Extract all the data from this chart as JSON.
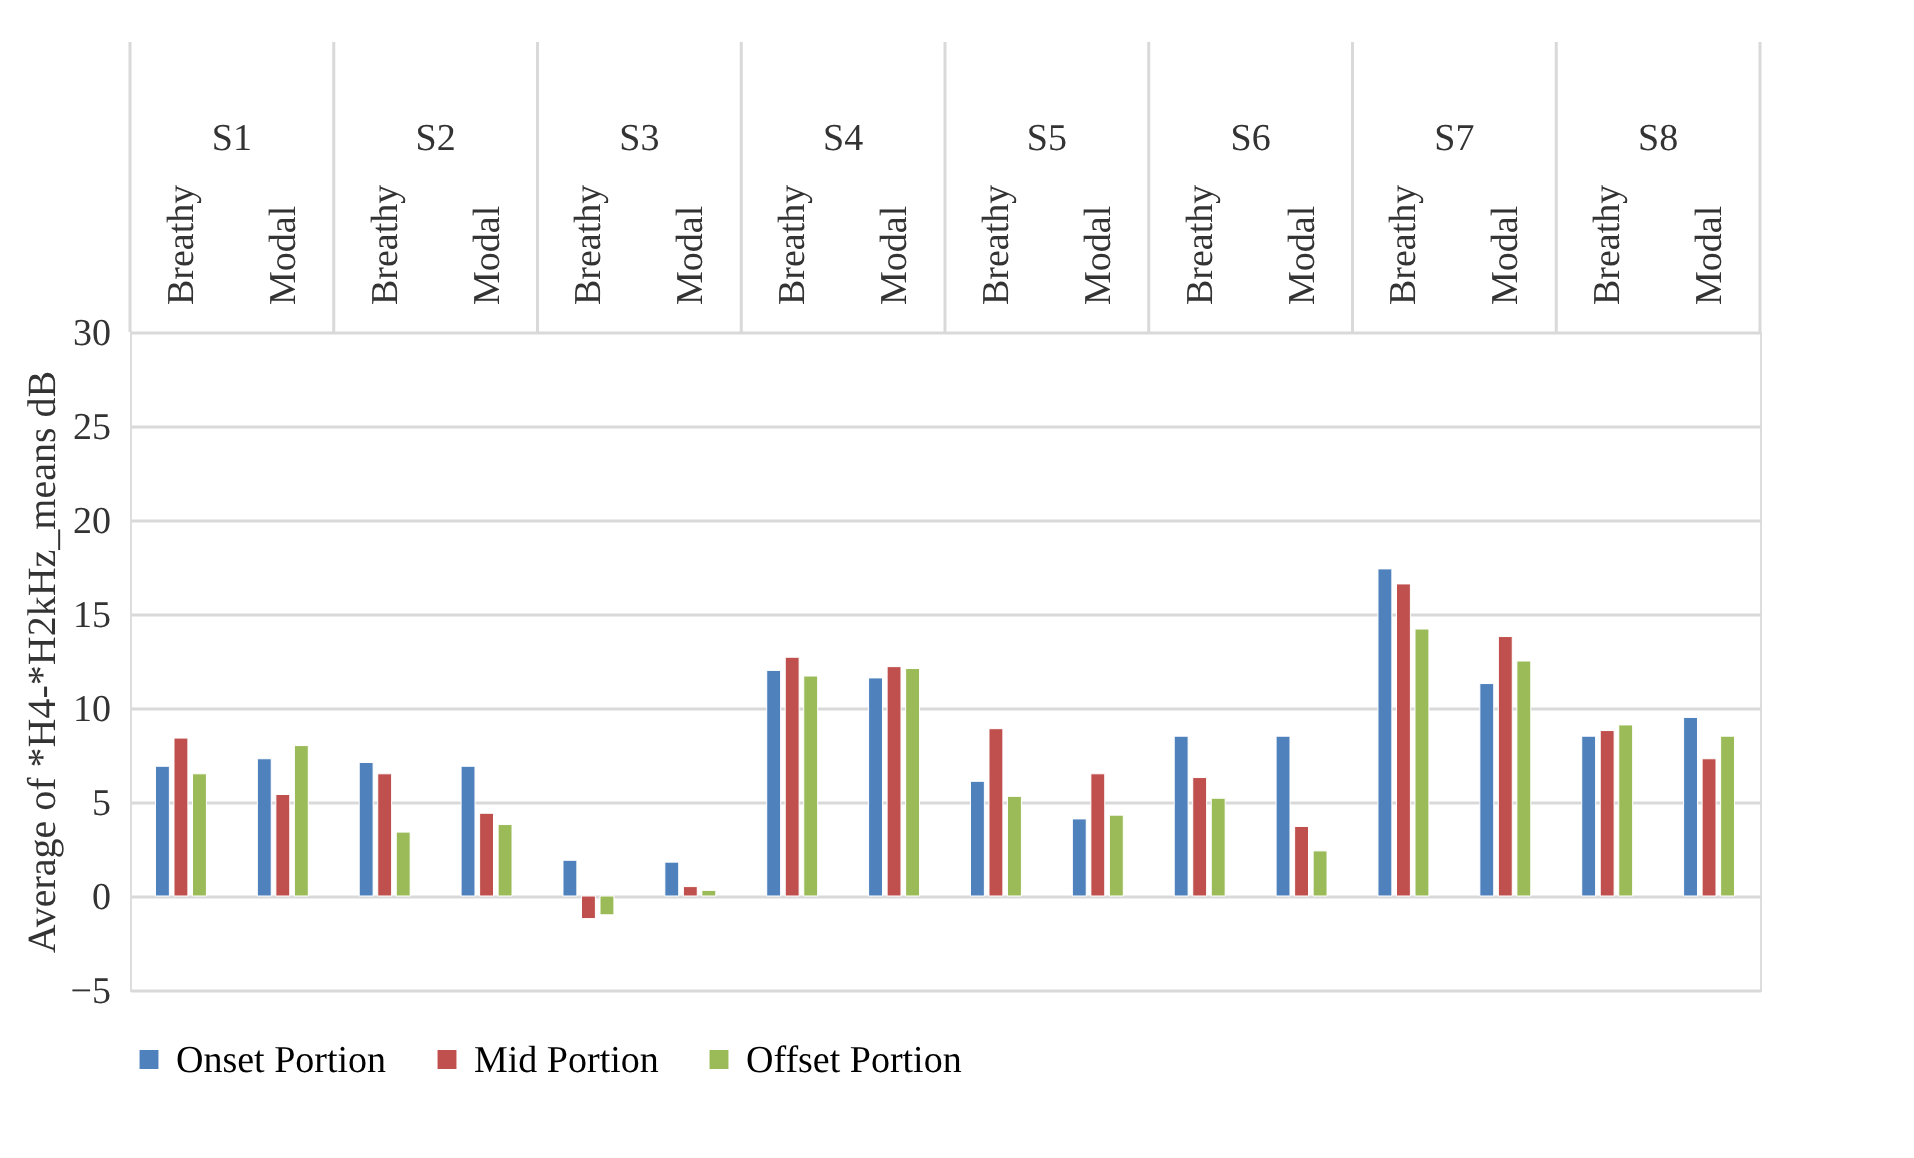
{
  "chart_data": {
    "type": "bar",
    "ylabel": "Average of *H4-*H2kHz_means dB",
    "categories": [
      "Breathy",
      "Modal",
      "Breathy",
      "Modal",
      "Breathy",
      "Modal",
      "Breathy",
      "Modal",
      "Breathy",
      "Modal",
      "Breathy",
      "Modal",
      "Breathy",
      "Modal",
      "Breathy",
      "Modal"
    ],
    "annotations": [
      "S1",
      "S2",
      "S3",
      "S4",
      "S5",
      "S6",
      "S7",
      "S8"
    ],
    "series": [
      {
        "name": "Onset Portion",
        "color": "#4f81bd",
        "values": [
          6.9,
          7.3,
          7.1,
          6.9,
          1.9,
          1.8,
          12.0,
          11.6,
          6.1,
          4.1,
          8.5,
          8.5,
          17.4,
          11.3,
          8.5,
          9.5
        ]
      },
      {
        "name": "Mid Portion",
        "color": "#c0504d",
        "values": [
          8.4,
          5.4,
          6.5,
          4.4,
          -1.2,
          0.5,
          12.7,
          12.2,
          8.9,
          6.5,
          6.3,
          3.7,
          16.6,
          13.8,
          8.8,
          7.3
        ]
      },
      {
        "name": "Offset Portion",
        "color": "#9bbb59",
        "values": [
          6.5,
          8.0,
          3.4,
          3.8,
          -1.0,
          0.3,
          11.7,
          12.1,
          5.3,
          4.3,
          5.2,
          2.4,
          14.2,
          12.5,
          9.1,
          8.5
        ]
      }
    ],
    "ylim": [
      -5,
      30
    ],
    "yticks": [
      -5,
      0,
      5,
      10,
      15,
      20,
      25,
      30
    ],
    "grid": "y",
    "legend": "bottom"
  }
}
